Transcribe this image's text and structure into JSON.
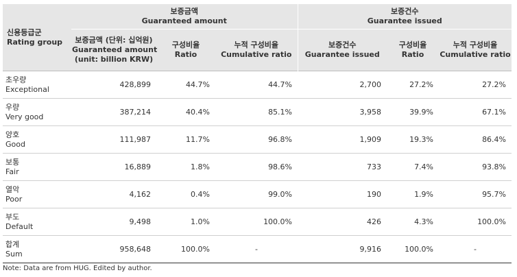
{
  "header": {
    "rating_group_ko": "신용등급군",
    "rating_group_en": "Rating group",
    "guaranteed_amount_ko": "보증금액",
    "guaranteed_amount_en": "Guaranteed amount",
    "guarantee_issued_ko": "보증건수",
    "guarantee_issued_en": "Guarantee issued",
    "col_amount_ko": "보증금액 (단위: 십억원)",
    "col_amount_en1": "Guaranteed amount",
    "col_amount_en2": "(unit: billion KRW)",
    "col_ratio_ko": "구성비율",
    "col_ratio_en": "Ratio",
    "col_cum_ko": "누적 구성비율",
    "col_cum_en": "Cumulative ratio",
    "col_issued_ko": "보증건수",
    "col_issued_en": "Guarantee issued",
    "col_ratio2_ko": "구성비율",
    "col_ratio2_en": "Ratio",
    "col_cum2_ko": "누적 구성비율",
    "col_cum2_en": "Cumulative ratio"
  },
  "rows": [
    {
      "ko": "초우량",
      "en": "Exceptional",
      "amount": "428,899",
      "ratio": "44.7%",
      "cum": "44.7%",
      "issued": "2,700",
      "ratio2": "27.2%",
      "cum2": "27.2%"
    },
    {
      "ko": "우량",
      "en": "Very good",
      "amount": "387,214",
      "ratio": "40.4%",
      "cum": "85.1%",
      "issued": "3,958",
      "ratio2": "39.9%",
      "cum2": "67.1%"
    },
    {
      "ko": "양호",
      "en": "Good",
      "amount": "111,987",
      "ratio": "11.7%",
      "cum": "96.8%",
      "issued": "1,909",
      "ratio2": "19.3%",
      "cum2": "86.4%"
    },
    {
      "ko": "보통",
      "en": "Fair",
      "amount": "16,889",
      "ratio": "1.8%",
      "cum": "98.6%",
      "issued": "733",
      "ratio2": "7.4%",
      "cum2": "93.8%"
    },
    {
      "ko": "열악",
      "en": "Poor",
      "amount": "4,162",
      "ratio": "0.4%",
      "cum": "99.0%",
      "issued": "190",
      "ratio2": "1.9%",
      "cum2": "95.7%"
    },
    {
      "ko": "부도",
      "en": "Default",
      "amount": "9,498",
      "ratio": "1.0%",
      "cum": "100.0%",
      "issued": "426",
      "ratio2": "4.3%",
      "cum2": "100.0%"
    },
    {
      "ko": "합계",
      "en": "Sum",
      "amount": "958,648",
      "ratio": "100.0%",
      "cum": "-",
      "issued": "9,916",
      "ratio2": "100.0%",
      "cum2": "-"
    }
  ],
  "note": "Note: Data are from HUG. Edited by author.",
  "colors": {
    "header_bg": "#e6e6e6",
    "text": "#333333",
    "row_border": "#cfcfcf"
  }
}
